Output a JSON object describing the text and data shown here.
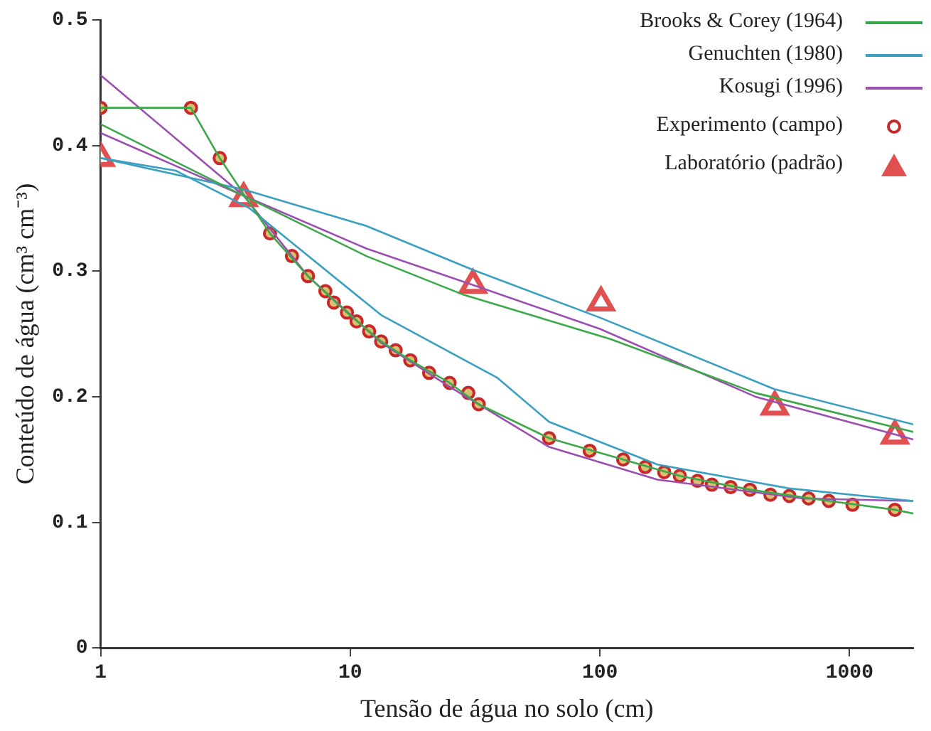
{
  "chart_data": {
    "type": "line",
    "xlabel": "Tensão de água no solo (cm)",
    "ylabel": "Conteúdo de água (cm³ cm⁻³)",
    "log": "x",
    "xlim": [
      1,
      1800
    ],
    "xticks": [
      1,
      10,
      100,
      1000
    ],
    "ylim": [
      0,
      0.5
    ],
    "yticks": [
      0,
      0.1,
      0.2,
      0.3,
      0.4,
      0.5
    ],
    "grid": false,
    "legend": "top right",
    "marker": "none",
    "line_style": "solid",
    "series": [
      {
        "name": "Brooks & Corey (1964)",
        "color": "#3da84a",
        "x": [
          1,
          3.74,
          11.6,
          28.6,
          110,
          420,
          1800
        ],
        "values": [
          0.417,
          0.36,
          0.312,
          0.281,
          0.246,
          0.203,
          0.172
        ]
      },
      {
        "color": "#3da84a",
        "x": [
          1,
          2.3,
          3,
          4.77,
          6.77,
          9.7,
          13.3,
          17.4,
          25,
          32.7,
          62.6,
          124,
          209,
          399,
          826,
          1520,
          1800
        ],
        "values": [
          0.43,
          0.43,
          0.39,
          0.33,
          0.296,
          0.267,
          0.244,
          0.229,
          0.211,
          0.194,
          0.167,
          0.15,
          0.137,
          0.126,
          0.117,
          0.11,
          0.107
        ]
      },
      {
        "name": "Genuchten (1980)",
        "color": "#3a9fc0",
        "x": [
          1,
          3.74,
          11.6,
          31,
          100,
          500,
          1800
        ],
        "values": [
          0.39,
          0.365,
          0.336,
          0.301,
          0.263,
          0.206,
          0.178
        ]
      },
      {
        "color": "#3a9fc0",
        "x": [
          1,
          2,
          3.95,
          13.3,
          38.9,
          62.6,
          170,
          574,
          1800
        ],
        "values": [
          0.39,
          0.38,
          0.35,
          0.265,
          0.215,
          0.18,
          0.146,
          0.127,
          0.117
        ]
      },
      {
        "name": "Kosugi (1996)",
        "color": "#9b4fb0",
        "x": [
          1,
          3.74,
          11.6,
          31,
          100,
          420,
          1800
        ],
        "values": [
          0.456,
          0.36,
          0.318,
          0.289,
          0.254,
          0.2,
          0.166
        ]
      },
      {
        "color": "#9b4fb0",
        "x": [
          1,
          3.74,
          6.77,
          13.3,
          25,
          62.6,
          170,
          650,
          1800
        ],
        "values": [
          0.41,
          0.36,
          0.296,
          0.243,
          0.208,
          0.16,
          0.134,
          0.119,
          0.117
        ]
      },
      {
        "name": "Experimento (campo)",
        "type": "scatter",
        "marker": "circle",
        "color": "#c8282a",
        "x": [
          1,
          2.3,
          3,
          4.77,
          5.84,
          6.77,
          7.95,
          8.6,
          9.7,
          10.6,
          11.9,
          13.3,
          15.2,
          17.4,
          20.7,
          25,
          29.7,
          32.7,
          62.6,
          91,
          124,
          152,
          181,
          209,
          246,
          281,
          334,
          399,
          482,
          574,
          686,
          826,
          1028,
          1520
        ],
        "values": [
          0.43,
          0.43,
          0.39,
          0.33,
          0.312,
          0.296,
          0.284,
          0.275,
          0.267,
          0.26,
          0.252,
          0.244,
          0.237,
          0.229,
          0.219,
          0.211,
          0.203,
          0.194,
          0.167,
          0.157,
          0.15,
          0.144,
          0.14,
          0.137,
          0.133,
          0.13,
          0.128,
          0.126,
          0.122,
          0.121,
          0.119,
          0.117,
          0.114,
          0.11
        ]
      },
      {
        "name": "Laboratório (padrão)",
        "type": "scatter",
        "marker": "triangle",
        "color": "#e05050",
        "x": [
          1,
          3.74,
          31,
          101,
          502,
          1520
        ],
        "values": [
          0.39,
          0.358,
          0.289,
          0.275,
          0.192,
          0.169
        ]
      }
    ]
  }
}
